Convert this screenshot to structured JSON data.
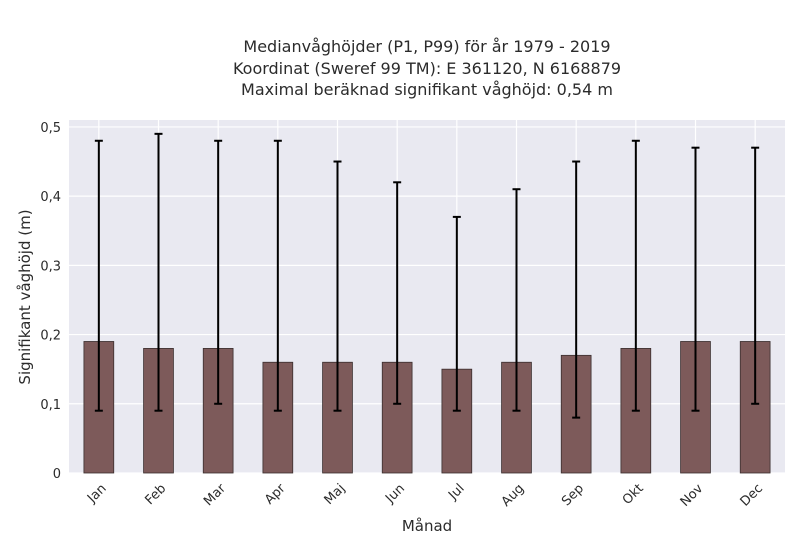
{
  "chart_data": {
    "type": "bar",
    "title_lines": [
      "Medianvåghöjder (P1, P99) för år 1979 - 2019",
      "Koordinat (Sweref 99 TM): E 361120, N 6168879",
      "Maximal beräknad signifikant våghöjd: 0,54 m"
    ],
    "xlabel": "Månad",
    "ylabel": "Signifikant våghöjd (m)",
    "categories": [
      "Jan",
      "Feb",
      "Mar",
      "Apr",
      "Maj",
      "Jun",
      "Jul",
      "Aug",
      "Sep",
      "Okt",
      "Nov",
      "Dec"
    ],
    "values": [
      0.19,
      0.18,
      0.18,
      0.16,
      0.16,
      0.16,
      0.15,
      0.16,
      0.17,
      0.18,
      0.19,
      0.19
    ],
    "p1": [
      0.09,
      0.09,
      0.1,
      0.09,
      0.09,
      0.1,
      0.09,
      0.09,
      0.08,
      0.09,
      0.09,
      0.1
    ],
    "p99": [
      0.48,
      0.49,
      0.48,
      0.48,
      0.45,
      0.42,
      0.37,
      0.41,
      0.45,
      0.48,
      0.47,
      0.47
    ],
    "ylim": [
      0,
      0.51
    ],
    "yticks": [
      0,
      0.1,
      0.2,
      0.3,
      0.4,
      0.5
    ],
    "ytick_labels": [
      "0",
      "0,1",
      "0,2",
      "0,3",
      "0,4",
      "0,5"
    ],
    "grid": true,
    "colors": {
      "bar": "#7d5a5a",
      "bar_edge": "#3a2e2e",
      "errorbar": "#000000",
      "background": "#e9e9f1",
      "grid": "#ffffff"
    }
  }
}
